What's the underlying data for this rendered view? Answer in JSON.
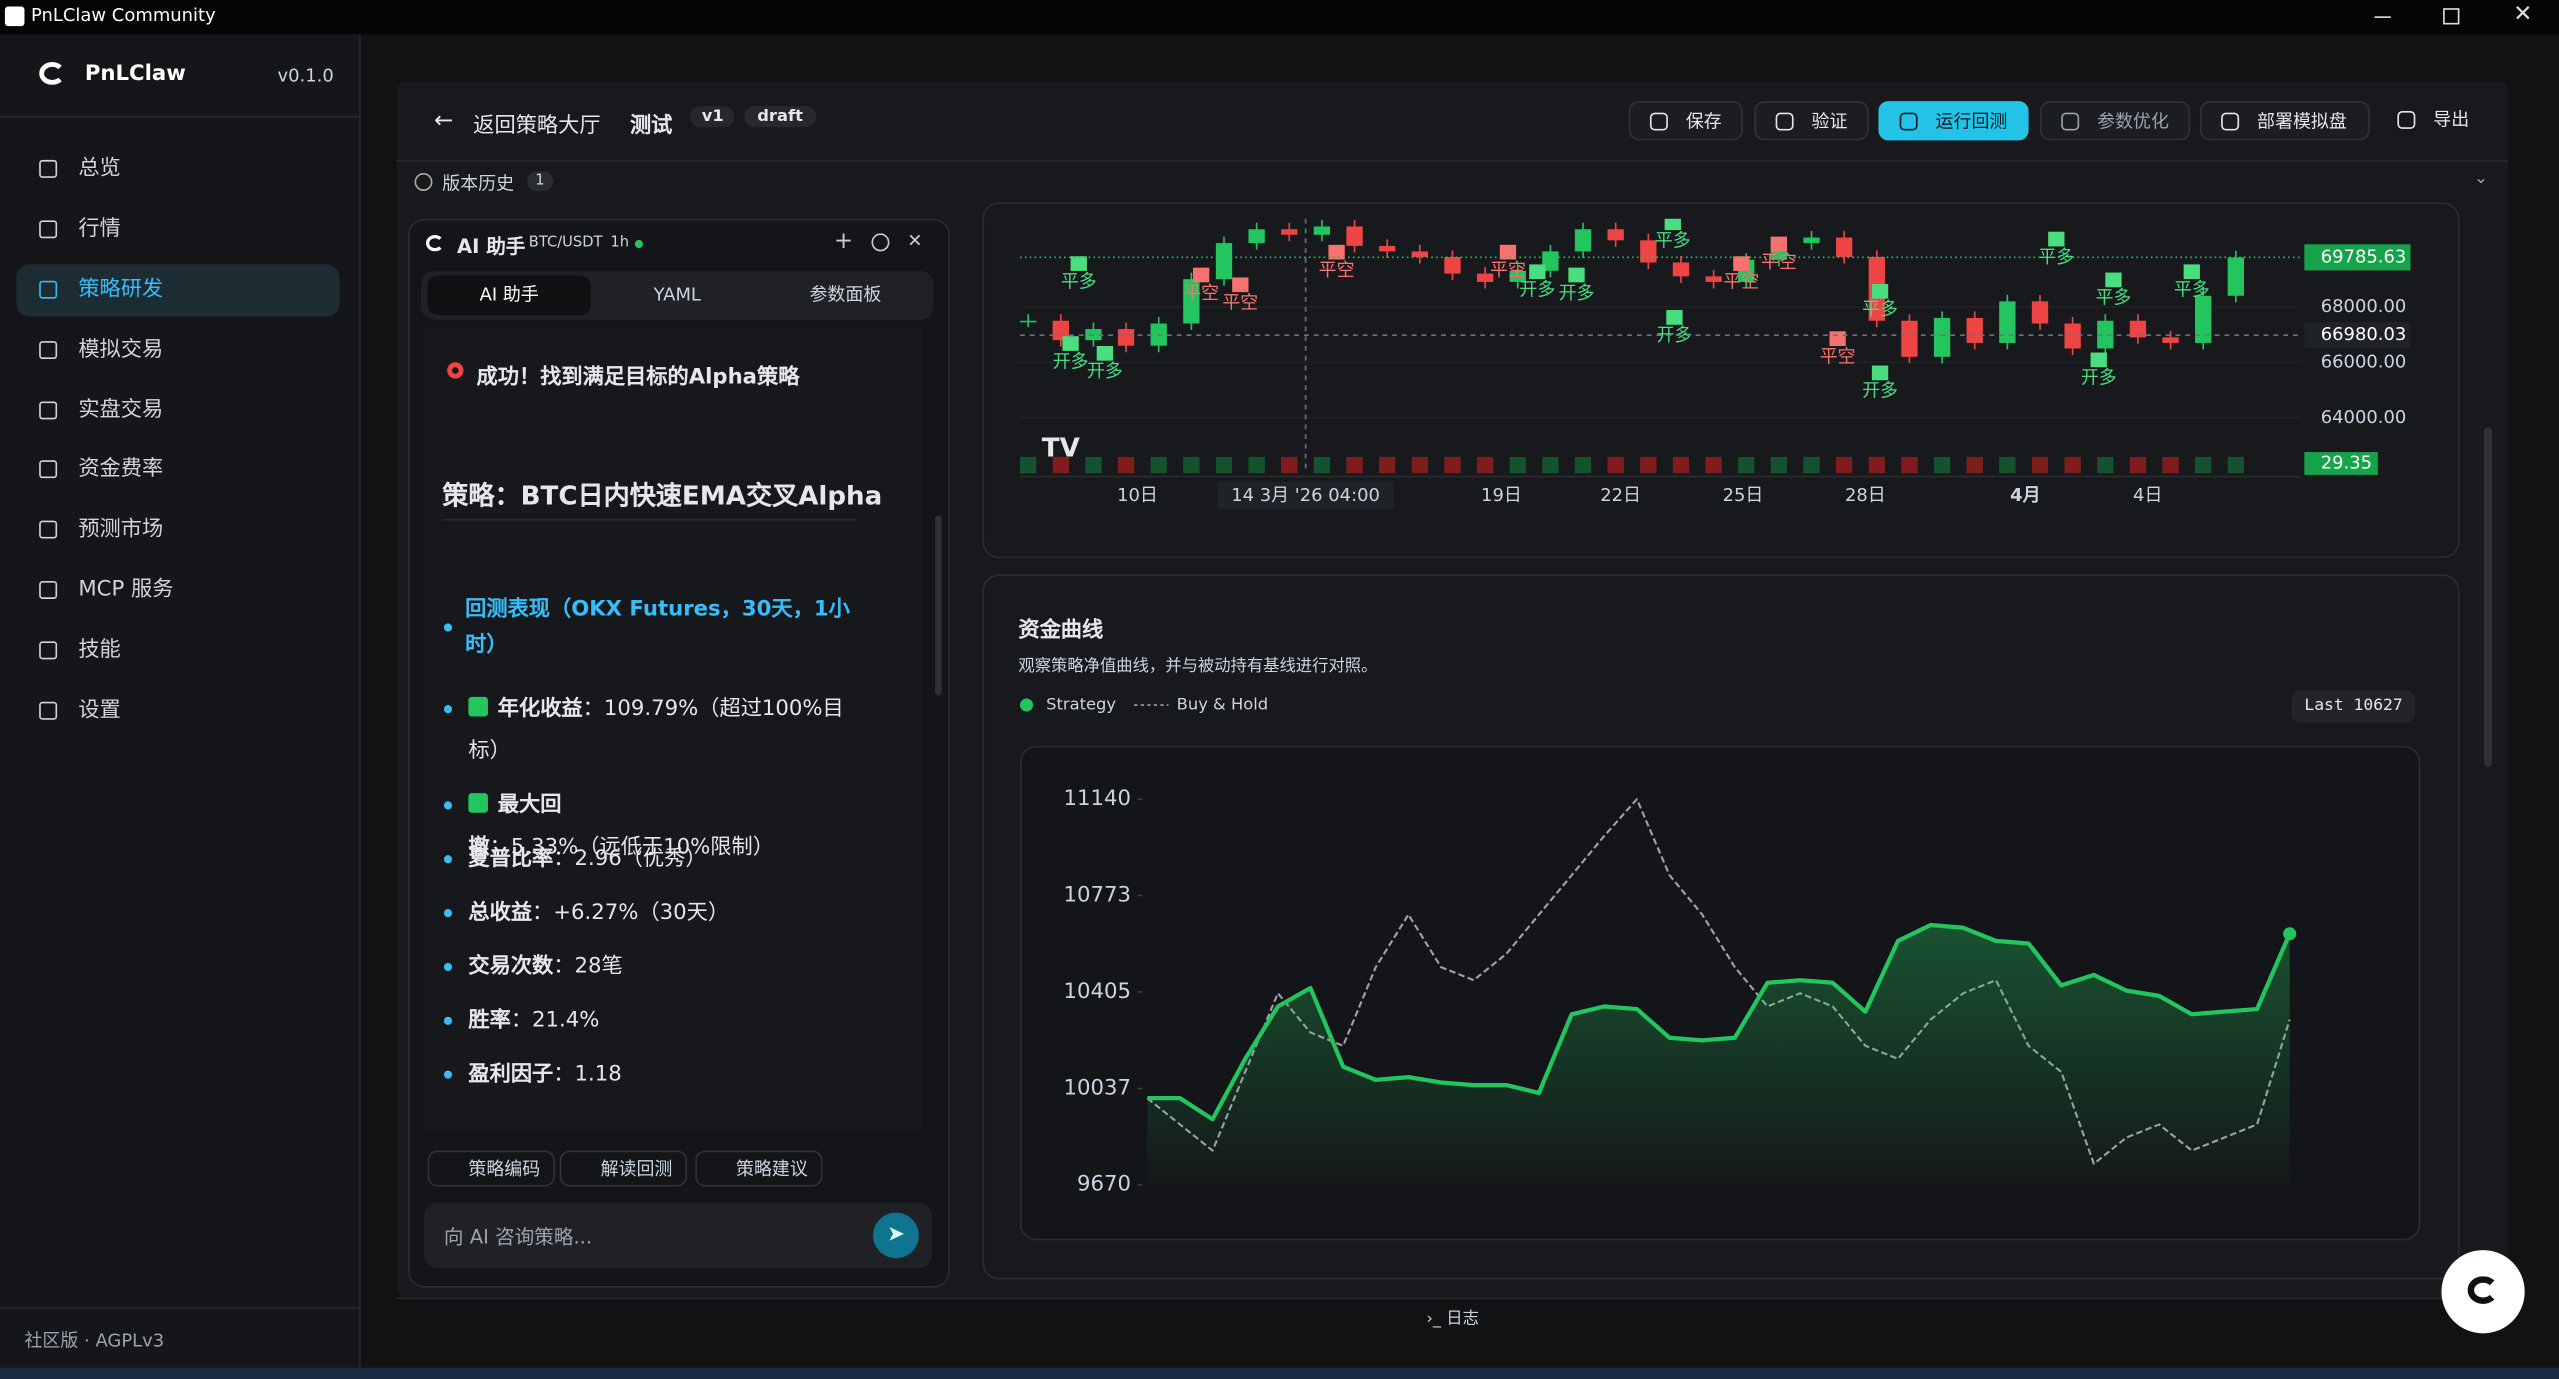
{
  "window": {
    "title": "PnLClaw Community"
  },
  "sidebar": {
    "brand": "PnLClaw",
    "version": "v0.1.0",
    "nav": [
      "总览",
      "行情",
      "策略研发",
      "模拟交易",
      "实盘交易",
      "资金费率",
      "预测市场",
      "MCP 服务",
      "技能",
      "设置"
    ],
    "active": 2,
    "footer": "社区版 · AGPLv3"
  },
  "toolbar": {
    "back": "返回策略大厅",
    "name": "测试",
    "version": "v1",
    "status": "draft",
    "actions": [
      "保存",
      "验证",
      "运行回测",
      "参数优化",
      "部署模拟盘",
      "导出"
    ],
    "primary": 2
  },
  "history": {
    "label": "版本历史",
    "count": 1
  },
  "assistant": {
    "title": "AI 助手",
    "pair": "BTC/USDT",
    "interval": "1h",
    "tabs": [
      "AI 助手",
      "YAML",
      "参数面板"
    ],
    "success": "成功！找到满足目标的Alpha策略",
    "strategy": "策略：BTC日内快速EMA交叉Alpha",
    "section": "回测表现（OKX Futures，30天，1小时）",
    "items": [
      {
        "key": "年化收益",
        "text": "：109.79%（超过100%目标）",
        "check": true
      },
      {
        "key": "最大回撤",
        "text": "：5.33%（远低于10%限制）",
        "check": true
      },
      {
        "key": "夏普比率",
        "text": "：2.96（优秀）",
        "check": false
      },
      {
        "key": "总收益",
        "text": "：+6.27%（30天）",
        "check": false
      },
      {
        "key": "交易次数",
        "text": "：28笔",
        "check": false
      },
      {
        "key": "胜率",
        "text": "：21.4%",
        "check": false
      },
      {
        "key": "盈利因子",
        "text": "：1.18",
        "check": false
      }
    ],
    "chips": [
      "策略编码",
      "解读回测",
      "策略建议"
    ],
    "placeholder": "向 AI 咨询策略..."
  },
  "log": "日志",
  "chart_data": [
    {
      "type": "candlestick",
      "values": [
        67500,
        66800,
        67200,
        66600,
        67400,
        69000,
        70300,
        70800,
        70600,
        70900,
        70200,
        70000,
        69800,
        69200,
        68900,
        69300,
        70000,
        70800,
        70400,
        69600,
        69100,
        68900,
        69700,
        70300,
        70500,
        69800,
        67500,
        66200,
        67600,
        66700,
        68200,
        67400,
        66500,
        67500,
        66900,
        66700,
        68400,
        69785.63
      ],
      "up_color": "#22c55e",
      "down_color": "#ef4444",
      "ylim": [
        62000,
        71180
      ],
      "yticks": [
        {
          "value": 64000,
          "label": "64000.00"
        },
        {
          "value": 66000,
          "label": "66000.00"
        },
        {
          "value": 68000,
          "label": "68000.00"
        }
      ],
      "x_labels": [
        "10日",
        "14 3月 '26   04:00",
        "19日",
        "22日",
        "25日",
        "28日",
        "4月",
        "4日"
      ],
      "last_price": 69785.63,
      "crosshair_price": 66980.03,
      "volume_last": 29.35,
      "signals": [
        {
          "label": "平多",
          "color": "#4ade80"
        },
        {
          "label": "开多",
          "color": "#4ade80"
        },
        {
          "label": "开多",
          "color": "#4ade80"
        },
        {
          "label": "平空",
          "color": "#f87171"
        },
        {
          "label": "平空",
          "color": "#f87171"
        },
        {
          "label": "平空",
          "color": "#f87171"
        },
        {
          "label": "平空",
          "color": "#f87171"
        },
        {
          "label": "开多",
          "color": "#4ade80"
        },
        {
          "label": "开多",
          "color": "#4ade80"
        },
        {
          "label": "平多",
          "color": "#4ade80"
        },
        {
          "label": "开多",
          "color": "#4ade80"
        },
        {
          "label": "平空",
          "color": "#f87171"
        },
        {
          "label": "平空",
          "color": "#f87171"
        },
        {
          "label": "平空",
          "color": "#f87171"
        },
        {
          "label": "平多",
          "color": "#4ade80"
        },
        {
          "label": "开多",
          "color": "#4ade80"
        },
        {
          "label": "平多",
          "color": "#4ade80"
        },
        {
          "label": "平多",
          "color": "#4ade80"
        },
        {
          "label": "开多",
          "color": "#4ade80"
        },
        {
          "label": "平多",
          "color": "#4ade80"
        }
      ]
    },
    {
      "type": "line",
      "title": "资金曲线",
      "subtitle": "观察策略净值曲线，并与被动持有基线进行对照。",
      "series": [
        {
          "name": "Strategy",
          "color": "#22c55e",
          "dash": false,
          "values": [
            10000,
            10000,
            9920,
            10150,
            10350,
            10420,
            10120,
            10070,
            10080,
            10060,
            10050,
            10050,
            10020,
            10320,
            10350,
            10340,
            10230,
            10220,
            10230,
            10440,
            10450,
            10440,
            10330,
            10600,
            10660,
            10650,
            10600,
            10590,
            10430,
            10470,
            10410,
            10390,
            10320,
            10330,
            10340,
            10627
          ]
        },
        {
          "name": "Buy & Hold",
          "color": "#a1a1aa",
          "dash": true,
          "values": [
            10000,
            9900,
            9800,
            10100,
            10400,
            10250,
            10200,
            10500,
            10700,
            10500,
            10450,
            10550,
            10700,
            10850,
            11000,
            11140,
            10850,
            10700,
            10500,
            10350,
            10400,
            10350,
            10200,
            10150,
            10300,
            10400,
            10450,
            10200,
            10100,
            9750,
            9850,
            9900,
            9800,
            9850,
            9900,
            10300
          ]
        }
      ],
      "ylim": [
        9570,
        11300
      ],
      "yticks": [
        9670,
        10037,
        10405,
        10773,
        11140
      ],
      "last_label": "Last"
    }
  ]
}
